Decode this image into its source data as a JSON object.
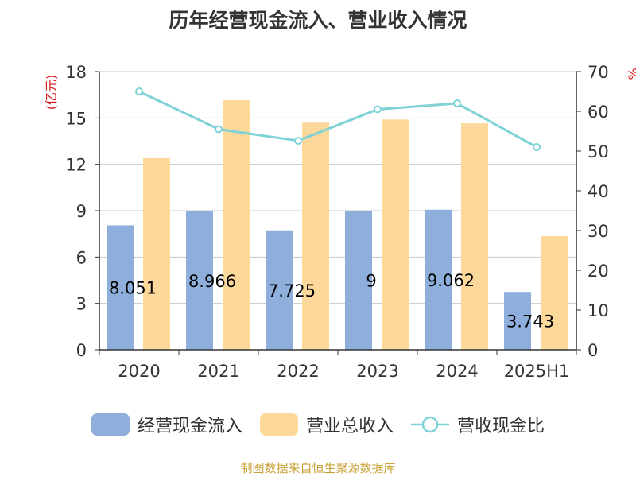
{
  "colors": {
    "cash_flow": "#8eaedc",
    "revenue": "#fdd89b",
    "ratio": "#7fd2d6",
    "axis_unit": "#d71818",
    "source": "#c9a33a",
    "grid": "#c8c8c8",
    "axis": "#333333"
  },
  "chart_data": {
    "type": "bar",
    "title": "历年经营现金流入、营业收入情况",
    "categories": [
      "2020",
      "2021",
      "2022",
      "2023",
      "2024",
      "2025H1"
    ],
    "left_axis": {
      "unit_label": "(亿元)",
      "ylim": [
        0,
        18
      ],
      "ticks": [
        0,
        3,
        6,
        9,
        12,
        15,
        18
      ]
    },
    "right_axis": {
      "unit_label": "%",
      "ylim": [
        0,
        70
      ],
      "ticks": [
        0,
        10,
        20,
        30,
        40,
        50,
        60,
        70
      ]
    },
    "grid": true,
    "legend_position": "bottom",
    "series": [
      {
        "name": "经营现金流入",
        "type": "bar",
        "axis": "left",
        "color": "#8eaedc",
        "values": [
          8.051,
          8.966,
          7.725,
          9,
          9.062,
          3.743
        ],
        "labels": [
          "8.051",
          "8.966",
          "7.725",
          "9",
          "9.062",
          "3.743"
        ]
      },
      {
        "name": "营业总收入",
        "type": "bar",
        "axis": "left",
        "color": "#fdd89b",
        "values": [
          12.4,
          16.15,
          14.7,
          14.9,
          14.65,
          7.35
        ]
      },
      {
        "name": "营收现金比",
        "type": "line",
        "axis": "right",
        "color": "#7fd2d6",
        "values": [
          65,
          55.5,
          52.6,
          60.5,
          62,
          51
        ]
      }
    ]
  },
  "footer": {
    "source": "制图数据来自恒生聚源数据库"
  }
}
